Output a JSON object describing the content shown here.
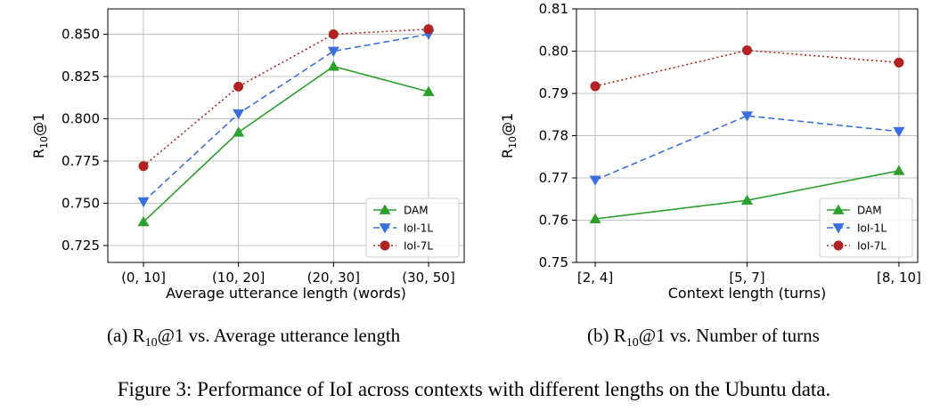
{
  "colors": {
    "DAM": "#2ca02c",
    "IoI-1L": "#3a6fe0",
    "IoI-7L": "#b22222",
    "grid": "#b0b0b0"
  },
  "captions": {
    "a_label": "(a)",
    "a_text": "@1 vs. Average utterance length",
    "b_label": "(b)",
    "b_text": "@1 vs. Number of turns",
    "metric_main": "R",
    "metric_sub": "10",
    "figure": "Figure 3: Performance of IoI across contexts with different lengths on the Ubuntu data."
  },
  "chart_data": [
    {
      "type": "line",
      "xlabel": "Average utterance length (words)",
      "ylabel_main": "R",
      "ylabel_sub": "10",
      "ylabel_tail": "@1",
      "categories": [
        "(0, 10]",
        "(10, 20]",
        "(20, 30]",
        "(30, 50]"
      ],
      "ylim": [
        0.715,
        0.865
      ],
      "yticks": [
        0.725,
        0.75,
        0.775,
        0.8,
        0.825,
        0.85
      ],
      "ytick_labels": [
        "0.725",
        "0.750",
        "0.775",
        "0.800",
        "0.825",
        "0.850"
      ],
      "grid": true,
      "legend": "bottom-right",
      "series": [
        {
          "name": "DAM",
          "values": [
            0.739,
            0.792,
            0.831,
            0.816
          ]
        },
        {
          "name": "IoI-1L",
          "values": [
            0.751,
            0.803,
            0.84,
            0.85
          ]
        },
        {
          "name": "IoI-7L",
          "values": [
            0.772,
            0.819,
            0.85,
            0.853
          ]
        }
      ]
    },
    {
      "type": "line",
      "xlabel": "Context length (turns)",
      "ylabel_main": "R",
      "ylabel_sub": "10",
      "ylabel_tail": "@1",
      "categories": [
        "[2, 4]",
        "[5, 7]",
        "[8, 10]"
      ],
      "ylim": [
        0.75,
        0.81
      ],
      "yticks": [
        0.75,
        0.76,
        0.77,
        0.78,
        0.79,
        0.8,
        0.81
      ],
      "ytick_labels": [
        "0.75",
        "0.76",
        "0.77",
        "0.78",
        "0.79",
        "0.80",
        "0.81"
      ],
      "grid": true,
      "legend": "bottom-right",
      "series": [
        {
          "name": "DAM",
          "values": [
            0.7603,
            0.7647,
            0.7717
          ]
        },
        {
          "name": "IoI-1L",
          "values": [
            0.7695,
            0.7847,
            0.781
          ]
        },
        {
          "name": "IoI-7L",
          "values": [
            0.7917,
            0.8002,
            0.7973
          ]
        }
      ]
    }
  ]
}
